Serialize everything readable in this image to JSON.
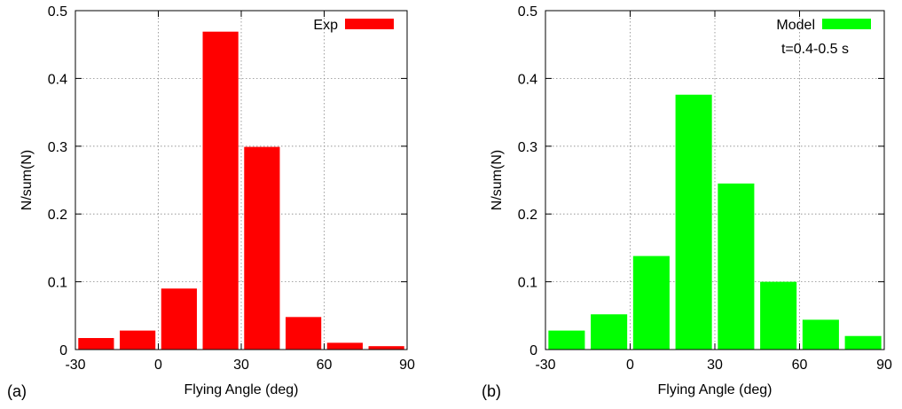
{
  "chart_data": [
    {
      "type": "bar",
      "panel_label": "(a)",
      "xlabel": "Flying Angle (deg)",
      "ylabel": "N/sum(N)",
      "xlim": [
        -30,
        90
      ],
      "ylim": [
        0,
        0.5
      ],
      "xticks": [
        -30,
        0,
        30,
        60,
        90
      ],
      "yticks": [
        0,
        0.1,
        0.2,
        0.3,
        0.4,
        0.5
      ],
      "ytick_labels": [
        "0",
        "0.1",
        "0.2",
        "0.3",
        "0.4",
        "0.5"
      ],
      "grid": true,
      "legend_position": "top-right",
      "bin_width": 15,
      "bin_centers": [
        -22.5,
        -7.5,
        7.5,
        22.5,
        37.5,
        52.5,
        67.5,
        82.5
      ],
      "series": [
        {
          "name": "Exp",
          "color": "#ff0000",
          "values": [
            0.017,
            0.028,
            0.09,
            0.469,
            0.299,
            0.048,
            0.01,
            0.005
          ]
        }
      ],
      "annotations": []
    },
    {
      "type": "bar",
      "panel_label": "(b)",
      "xlabel": "Flying Angle (deg)",
      "ylabel": "N/sum(N)",
      "xlim": [
        -30,
        90
      ],
      "ylim": [
        0,
        0.5
      ],
      "xticks": [
        -30,
        0,
        30,
        60,
        90
      ],
      "yticks": [
        0,
        0.1,
        0.2,
        0.3,
        0.4,
        0.5
      ],
      "ytick_labels": [
        "0",
        "0.1",
        "0.2",
        "0.3",
        "0.4",
        "0.5"
      ],
      "grid": true,
      "legend_position": "top-right",
      "bin_width": 15,
      "bin_centers": [
        -22.5,
        -7.5,
        7.5,
        22.5,
        37.5,
        52.5,
        67.5,
        82.5
      ],
      "series": [
        {
          "name": "Model",
          "color": "#00ff00",
          "values": [
            0.028,
            0.052,
            0.138,
            0.376,
            0.245,
            0.1,
            0.044,
            0.02
          ]
        }
      ],
      "annotations": [
        "t=0.4-0.5 s"
      ]
    }
  ]
}
